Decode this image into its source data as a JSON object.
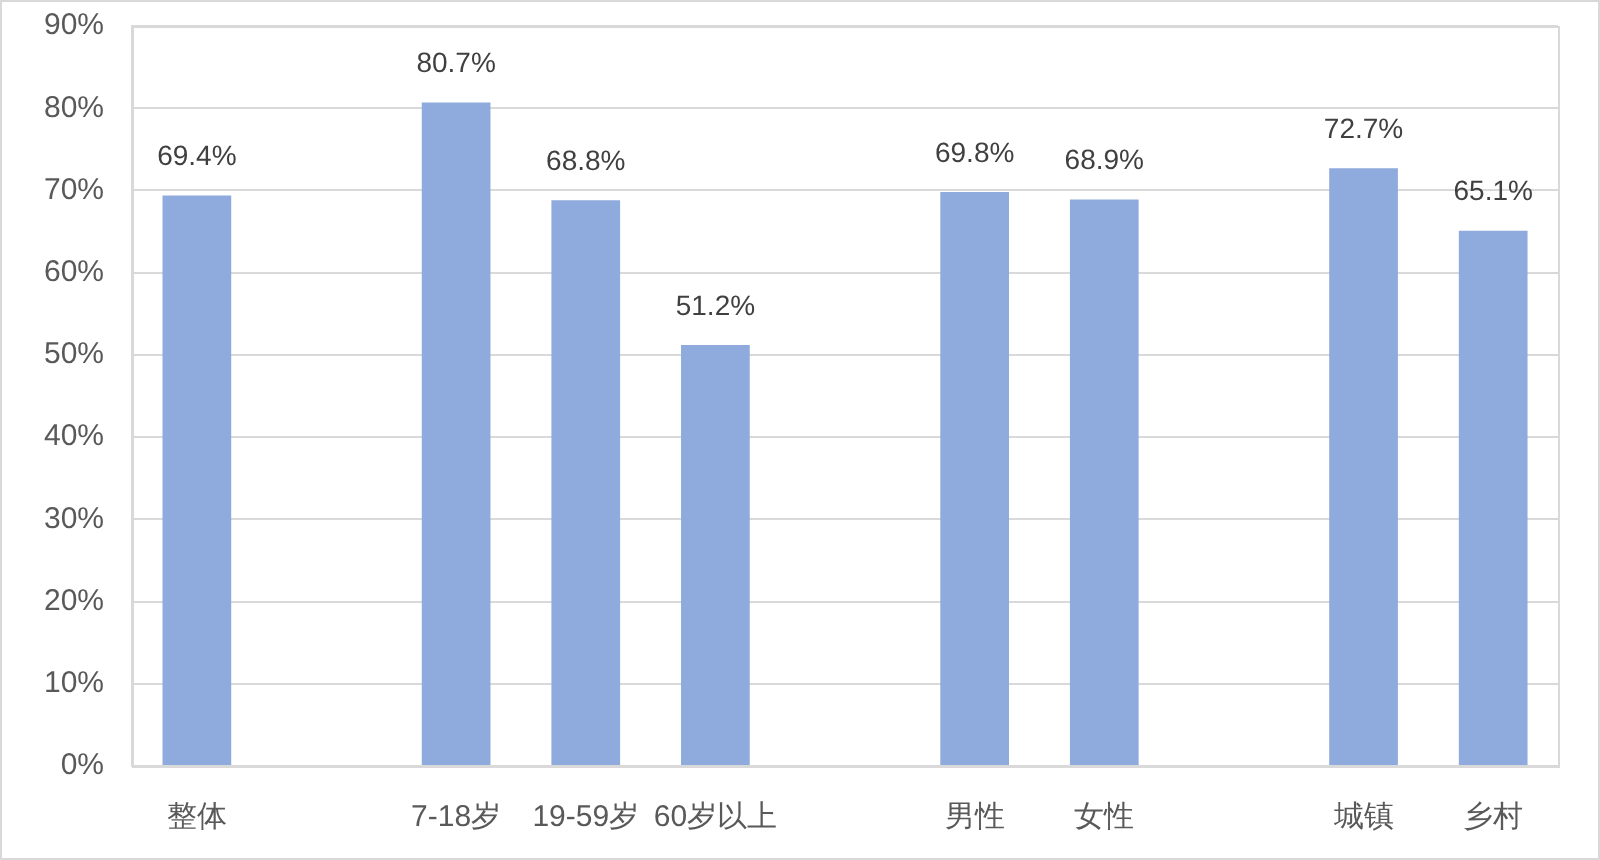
{
  "chart_data": {
    "type": "bar",
    "categories": [
      "整体",
      null,
      "7-18岁",
      "19-59岁",
      "60岁以上",
      null,
      "男性",
      "女性",
      null,
      "城镇",
      "乡村"
    ],
    "values": [
      69.4,
      null,
      80.7,
      68.8,
      51.2,
      null,
      69.8,
      68.9,
      null,
      72.7,
      65.1
    ],
    "value_labels": [
      "69.4%",
      null,
      "80.7%",
      "68.8%",
      "51.2%",
      null,
      "69.8%",
      "68.9%",
      null,
      "72.7%",
      "65.1%"
    ],
    "color": "#8faadc",
    "ylim": [
      0,
      90
    ],
    "yticks": [
      {
        "value": 0,
        "label": "0%"
      },
      {
        "value": 10,
        "label": "10%"
      },
      {
        "value": 20,
        "label": "20%"
      },
      {
        "value": 30,
        "label": "30%"
      },
      {
        "value": 40,
        "label": "40%"
      },
      {
        "value": 50,
        "label": "50%"
      },
      {
        "value": 60,
        "label": "60%"
      },
      {
        "value": 70,
        "label": "70%"
      },
      {
        "value": 80,
        "label": "80%"
      },
      {
        "value": 90,
        "label": "90%"
      }
    ],
    "grid": "y"
  }
}
